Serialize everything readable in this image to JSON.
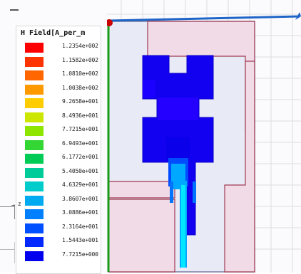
{
  "app": {
    "field_title": "H Field[A_per_m",
    "triad_label": "z"
  },
  "legend": {
    "entries": [
      {
        "value": "1.2354e+002",
        "color": "#ff0000"
      },
      {
        "value": "1.1582e+002",
        "color": "#ff3300"
      },
      {
        "value": "1.0810e+002",
        "color": "#ff6600"
      },
      {
        "value": "1.0038e+002",
        "color": "#ff9900"
      },
      {
        "value": "9.2658e+001",
        "color": "#ffcc00"
      },
      {
        "value": "8.4936e+001",
        "color": "#cce600"
      },
      {
        "value": "7.7215e+001",
        "color": "#8ee600"
      },
      {
        "value": "6.9493e+001",
        "color": "#33d633"
      },
      {
        "value": "6.1772e+001",
        "color": "#00cc55"
      },
      {
        "value": "5.4050e+001",
        "color": "#00cc99"
      },
      {
        "value": "4.6329e+001",
        "color": "#00cccc"
      },
      {
        "value": "3.8607e+001",
        "color": "#00aaf0"
      },
      {
        "value": "3.0886e+001",
        "color": "#0080ff"
      },
      {
        "value": "2.3164e+001",
        "color": "#0050ff"
      },
      {
        "value": "1.5443e+001",
        "color": "#0028ff"
      },
      {
        "value": "7.7215e+000",
        "color": "#0000ee"
      }
    ]
  },
  "colors": {
    "substrate": "#e8eaf5",
    "ground_fill": "#f1dbe6",
    "ground_stroke": "#9f3b54",
    "field_low": "#0000ee",
    "field_mid": "#0055ff",
    "field_high": "#00d6ff",
    "axis_blue": "#1f64c7",
    "axis_green": "#1a9a1a"
  }
}
